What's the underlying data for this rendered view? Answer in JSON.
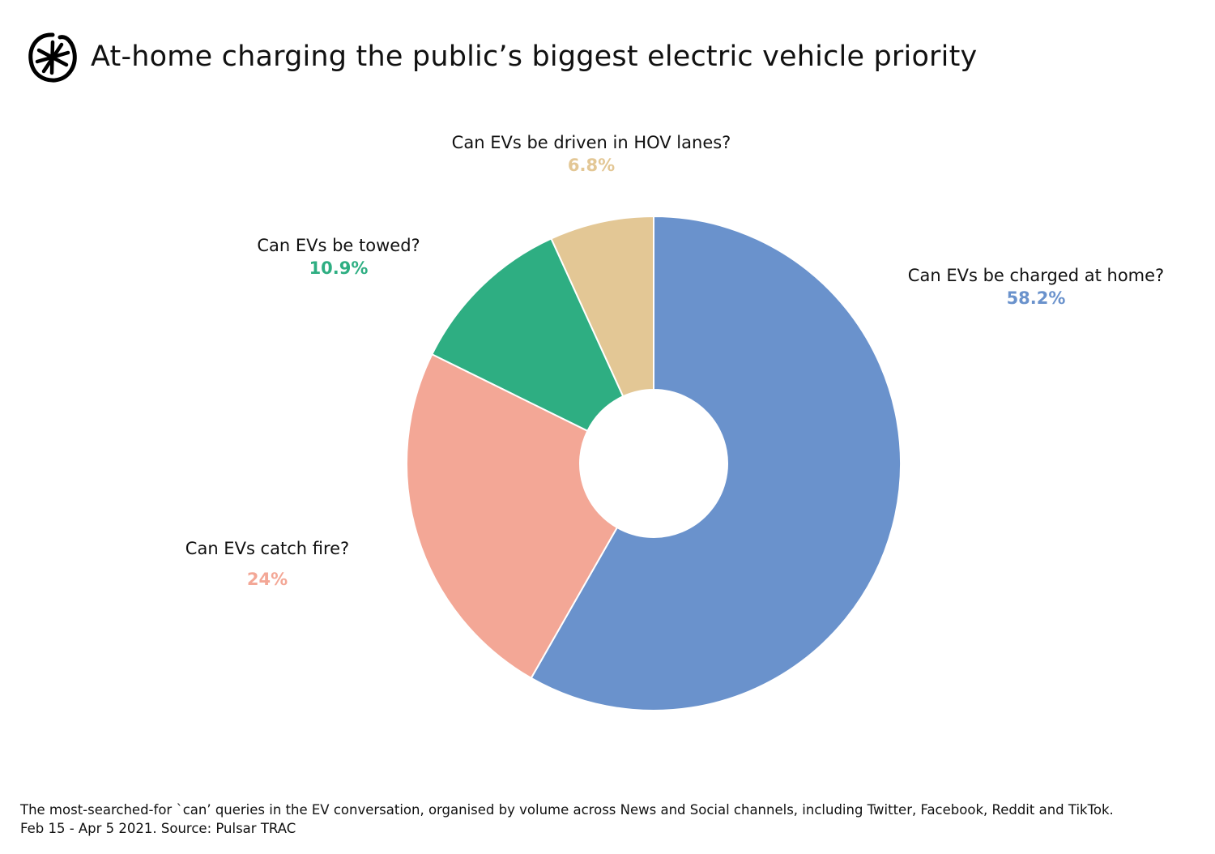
{
  "title": "At-home charging the public’s biggest electric vehicle priority",
  "logo": "asterisk-circle-logo",
  "chart_data": {
    "type": "pie",
    "donut": true,
    "start": "top",
    "direction": "clockwise",
    "slices": [
      {
        "label": "Can EVs be charged at home?",
        "value": 58.2,
        "display": "58.2%",
        "color": "#6a92cc"
      },
      {
        "label": "Can EVs catch fire?",
        "value": 24,
        "display": "24%",
        "color": "#f3a796"
      },
      {
        "label": "Can EVs be towed?",
        "value": 10.9,
        "display": "10.9%",
        "color": "#2eae82"
      },
      {
        "label": "Can EVs be driven in HOV lanes?",
        "value": 6.8,
        "display": "6.8%",
        "color": "#e3c795"
      }
    ]
  },
  "footer": {
    "line1": "The most-searched-for `can’ queries in the EV conversation, organised by volume across News and Social channels, including Twitter, Facebook, Reddit and TikTok.",
    "line2": "Feb 15 - Apr 5 2021. Source: Pulsar TRAC"
  }
}
